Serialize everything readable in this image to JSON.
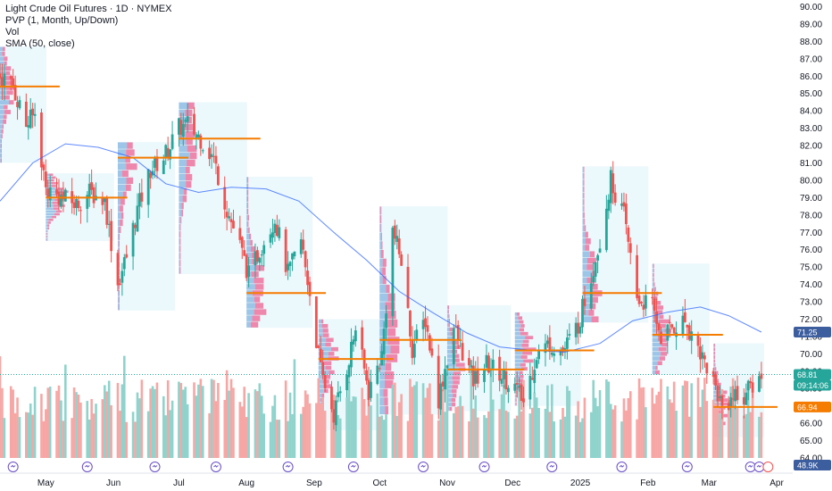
{
  "legend": {
    "title": "Light Crude Oil Futures · 1D · NYMEX",
    "pvp": "PVP (1, Month, Up/Down)",
    "vol": "Vol",
    "sma": "SMA (50, close)"
  },
  "colors": {
    "up": "#26a69a",
    "down": "#ef5350",
    "vol_up": "#8fd3cc",
    "vol_down": "#f6a7a5",
    "sma": "#2962ff",
    "poc": "#f57c00",
    "profile_bg": "#e8f7fc",
    "profile_up": "#5b9bd5",
    "profile_down": "#f06292"
  },
  "price_axis": {
    "labels": [
      "90.00",
      "89.00",
      "88.00",
      "87.00",
      "86.00",
      "85.00",
      "84.00",
      "83.00",
      "82.00",
      "81.00",
      "80.00",
      "79.00",
      "78.00",
      "77.00",
      "76.00",
      "75.00",
      "74.00",
      "73.00",
      "72.00",
      "71.00",
      "70.00",
      "69.00",
      "68.00",
      "67.00",
      "66.00",
      "65.00",
      "64.00"
    ],
    "badges": [
      {
        "value": "71.25",
        "color": "#3c5d9e"
      },
      {
        "value": "68.81",
        "color": "#26a69a"
      },
      {
        "value": "09:14:06",
        "color": "#26a69a"
      },
      {
        "value": "66.94",
        "color": "#f57c00"
      },
      {
        "value": "48.9K",
        "color": "#3c5d9e"
      }
    ]
  },
  "time_axis": {
    "labels": [
      "May",
      "Jun",
      "Jul",
      "Aug",
      "Sep",
      "Oct",
      "Nov",
      "Dec",
      "2025",
      "Feb",
      "Mar",
      "Apr"
    ]
  },
  "chart_data": {
    "type": "candlestick",
    "title": "Light Crude Oil Futures · 1D · NYMEX",
    "ylim": [
      63.5,
      90.2
    ],
    "x_start": "2024-04-10",
    "x_end": "2025-03-31",
    "last_price": 68.81,
    "sma_last": 71.25,
    "volume_last": "48.9K",
    "close_path": [
      [
        "2024-04-10",
        86.0
      ],
      [
        "2024-04-16",
        85.4
      ],
      [
        "2024-04-22",
        83.2
      ],
      [
        "2024-04-26",
        83.8
      ],
      [
        "2024-05-01",
        79.5
      ],
      [
        "2024-05-08",
        79.0
      ],
      [
        "2024-05-15",
        78.6
      ],
      [
        "2024-05-21",
        79.3
      ],
      [
        "2024-05-28",
        78.8
      ],
      [
        "2024-06-03",
        74.0
      ],
      [
        "2024-06-07",
        75.6
      ],
      [
        "2024-06-12",
        78.3
      ],
      [
        "2024-06-18",
        80.6
      ],
      [
        "2024-06-24",
        81.3
      ],
      [
        "2024-07-01",
        83.0
      ],
      [
        "2024-07-05",
        83.2
      ],
      [
        "2024-07-11",
        82.4
      ],
      [
        "2024-07-17",
        81.2
      ],
      [
        "2024-07-23",
        78.3
      ],
      [
        "2024-07-29",
        76.2
      ],
      [
        "2024-08-02",
        74.5
      ],
      [
        "2024-08-08",
        76.3
      ],
      [
        "2024-08-14",
        77.8
      ],
      [
        "2024-08-20",
        74.6
      ],
      [
        "2024-08-26",
        76.5
      ],
      [
        "2024-08-30",
        73.5
      ],
      [
        "2024-09-04",
        69.0
      ],
      [
        "2024-09-10",
        66.5
      ],
      [
        "2024-09-16",
        69.2
      ],
      [
        "2024-09-20",
        71.5
      ],
      [
        "2024-09-26",
        67.8
      ],
      [
        "2024-10-02",
        69.9
      ],
      [
        "2024-10-07",
        77.1
      ],
      [
        "2024-10-11",
        75.3
      ],
      [
        "2024-10-16",
        70.3
      ],
      [
        "2024-10-22",
        72.0
      ],
      [
        "2024-10-28",
        67.4
      ],
      [
        "2024-11-04",
        71.5
      ],
      [
        "2024-11-08",
        70.1
      ],
      [
        "2024-11-13",
        68.4
      ],
      [
        "2024-11-19",
        69.4
      ],
      [
        "2024-11-25",
        68.9
      ],
      [
        "2024-12-02",
        68.1
      ],
      [
        "2024-12-06",
        67.2
      ],
      [
        "2024-12-12",
        70.0
      ],
      [
        "2024-12-18",
        70.6
      ],
      [
        "2024-12-24",
        70.1
      ],
      [
        "2024-12-31",
        71.7
      ],
      [
        "2025-01-06",
        74.5
      ],
      [
        "2025-01-10",
        76.6
      ],
      [
        "2025-01-15",
        80.0
      ],
      [
        "2025-01-21",
        77.9
      ],
      [
        "2025-01-27",
        73.2
      ],
      [
        "2025-02-03",
        72.7
      ],
      [
        "2025-02-07",
        71.0
      ],
      [
        "2025-02-12",
        71.5
      ],
      [
        "2025-02-18",
        71.9
      ],
      [
        "2025-02-24",
        70.4
      ],
      [
        "2025-03-03",
        68.4
      ],
      [
        "2025-03-07",
        67.0
      ],
      [
        "2025-03-12",
        67.6
      ],
      [
        "2025-03-17",
        67.6
      ],
      [
        "2025-03-21",
        68.2
      ],
      [
        "2025-03-25",
        68.81
      ]
    ],
    "sma_path": [
      [
        "2024-04-10",
        78.8
      ],
      [
        "2024-04-25",
        81.0
      ],
      [
        "2024-05-10",
        82.1
      ],
      [
        "2024-05-25",
        81.9
      ],
      [
        "2024-06-10",
        81.3
      ],
      [
        "2024-06-25",
        79.8
      ],
      [
        "2024-07-10",
        79.3
      ],
      [
        "2024-07-25",
        79.6
      ],
      [
        "2024-08-10",
        79.5
      ],
      [
        "2024-08-25",
        78.8
      ],
      [
        "2024-09-10",
        77.0
      ],
      [
        "2024-09-25",
        75.4
      ],
      [
        "2024-10-10",
        73.6
      ],
      [
        "2024-10-25",
        72.4
      ],
      [
        "2024-11-10",
        71.2
      ],
      [
        "2024-11-25",
        70.4
      ],
      [
        "2024-12-10",
        70.2
      ],
      [
        "2024-12-25",
        70.1
      ],
      [
        "2025-01-10",
        70.6
      ],
      [
        "2025-01-25",
        71.9
      ],
      [
        "2025-02-10",
        72.4
      ],
      [
        "2025-02-25",
        72.7
      ],
      [
        "2025-03-10",
        72.2
      ],
      [
        "2025-03-25",
        71.25
      ]
    ],
    "monthly_profiles": [
      {
        "start": "2024-04-10",
        "end": "2024-04-30",
        "low": 81.0,
        "high": 87.7,
        "poc": 85.4
      },
      {
        "start": "2024-05-01",
        "end": "2024-05-31",
        "low": 76.5,
        "high": 80.4,
        "poc": 79.0
      },
      {
        "start": "2024-06-03",
        "end": "2024-06-28",
        "low": 72.5,
        "high": 82.2,
        "poc": 81.3
      },
      {
        "start": "2024-07-01",
        "end": "2024-07-31",
        "low": 74.6,
        "high": 84.5,
        "poc": 82.4
      },
      {
        "start": "2024-08-01",
        "end": "2024-08-30",
        "low": 71.5,
        "high": 80.2,
        "poc": 73.5
      },
      {
        "start": "2024-09-03",
        "end": "2024-09-30",
        "low": 65.6,
        "high": 72.0,
        "poc": 69.7
      },
      {
        "start": "2024-10-01",
        "end": "2024-10-31",
        "low": 66.5,
        "high": 78.5,
        "poc": 70.8
      },
      {
        "start": "2024-11-01",
        "end": "2024-11-29",
        "low": 66.7,
        "high": 72.8,
        "poc": 69.1
      },
      {
        "start": "2024-12-02",
        "end": "2024-12-31",
        "low": 67.0,
        "high": 72.4,
        "poc": 70.2
      },
      {
        "start": "2025-01-02",
        "end": "2025-01-31",
        "low": 71.8,
        "high": 80.8,
        "poc": 73.5
      },
      {
        "start": "2025-02-03",
        "end": "2025-02-28",
        "low": 68.8,
        "high": 75.2,
        "poc": 71.1
      },
      {
        "start": "2025-03-03",
        "end": "2025-03-25",
        "low": 65.2,
        "high": 70.6,
        "poc": 66.94
      }
    ],
    "month_ticks": [
      [
        "2024-05-01",
        "May"
      ],
      [
        "2024-06-01",
        "Jun"
      ],
      [
        "2024-07-01",
        "Jul"
      ],
      [
        "2024-08-01",
        "Aug"
      ],
      [
        "2024-09-01",
        "Sep"
      ],
      [
        "2024-10-01",
        "Oct"
      ],
      [
        "2024-11-01",
        "Nov"
      ],
      [
        "2024-12-01",
        "Dec"
      ],
      [
        "2025-01-01",
        "2025"
      ],
      [
        "2025-02-01",
        "Feb"
      ],
      [
        "2025-03-01",
        "Mar"
      ],
      [
        "2025-04-01",
        "Apr"
      ]
    ]
  }
}
